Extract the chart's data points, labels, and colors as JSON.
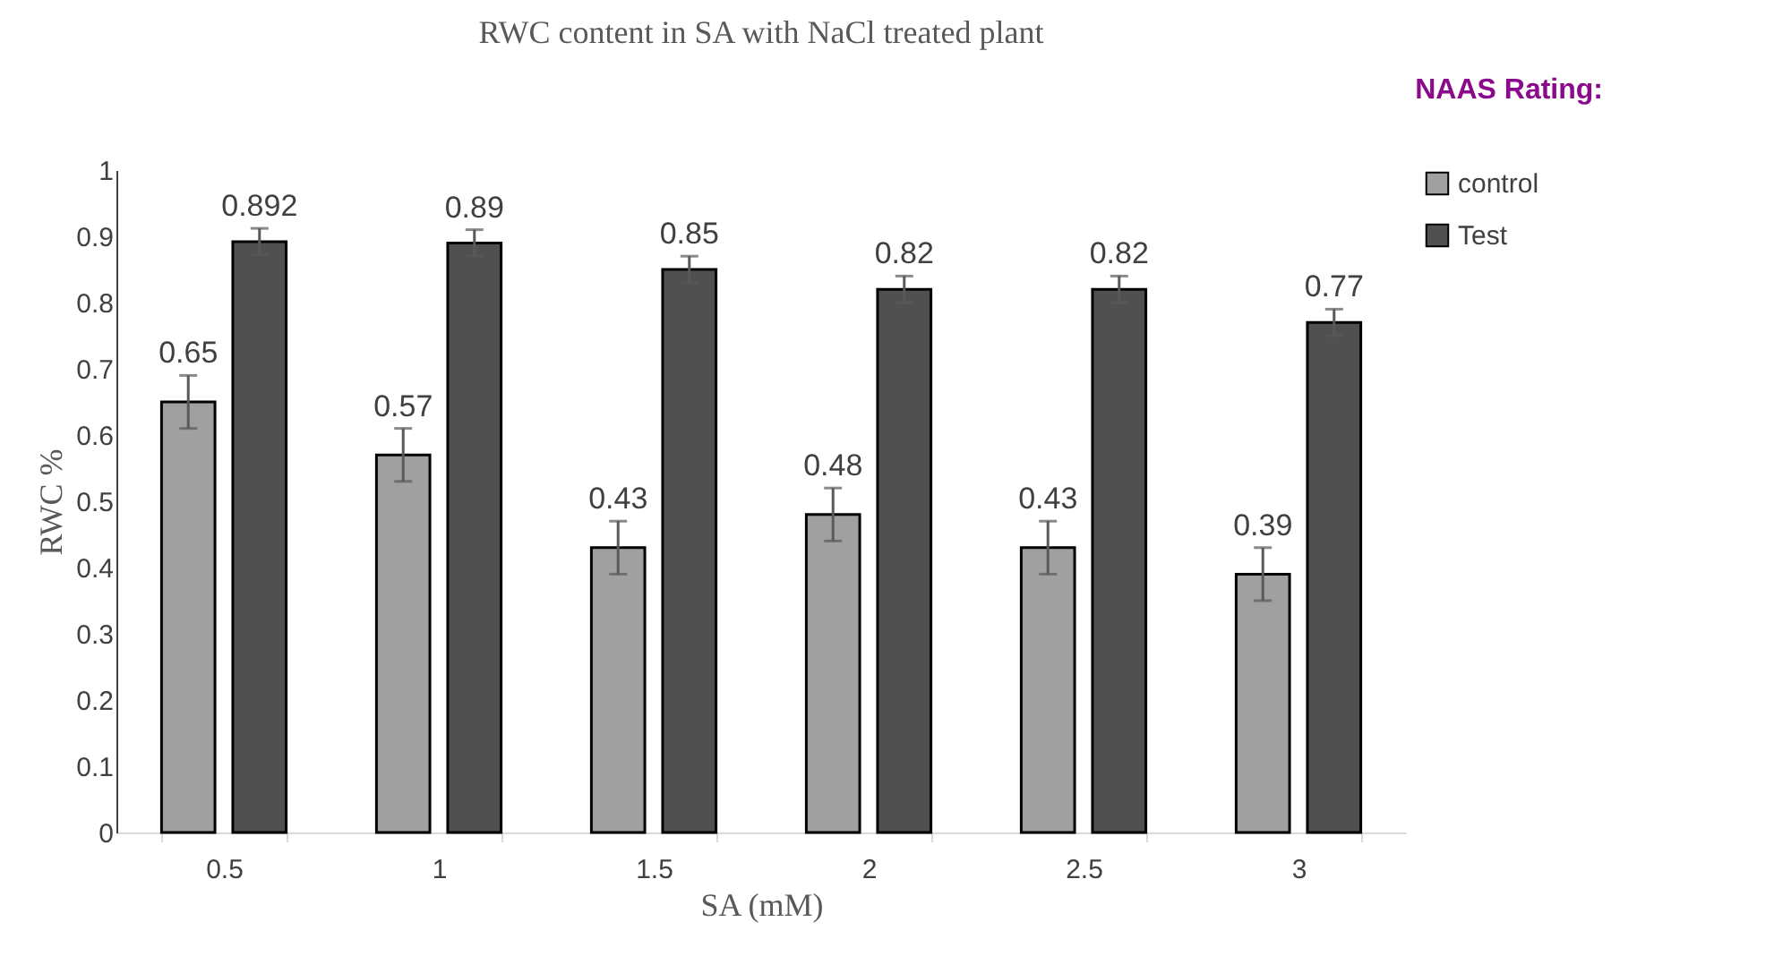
{
  "chart_data": {
    "type": "bar",
    "title": "RWC content in SA with NaCl treated plant",
    "xlabel": "SA (mM)",
    "ylabel": "RWC %",
    "categories": [
      "0.5",
      "1",
      "1.5",
      "2",
      "2.5",
      "3"
    ],
    "series": [
      {
        "name": "control",
        "color": "#a0a0a0",
        "values": [
          0.65,
          0.57,
          0.43,
          0.48,
          0.43,
          0.39
        ],
        "errors": [
          0.04,
          0.04,
          0.04,
          0.04,
          0.04,
          0.04
        ]
      },
      {
        "name": "Test",
        "color": "#505050",
        "values": [
          0.892,
          0.89,
          0.85,
          0.82,
          0.82,
          0.77
        ],
        "errors": [
          0.02,
          0.02,
          0.02,
          0.02,
          0.02,
          0.02
        ]
      }
    ],
    "ylim": [
      0,
      1
    ],
    "yticks": [
      0,
      0.1,
      0.2,
      0.3,
      0.4,
      0.5,
      0.6,
      0.7,
      0.8,
      0.9,
      1
    ],
    "data_labels": true,
    "grid": false,
    "legend": "right",
    "annotations": [
      "NAAS Rating:"
    ]
  }
}
